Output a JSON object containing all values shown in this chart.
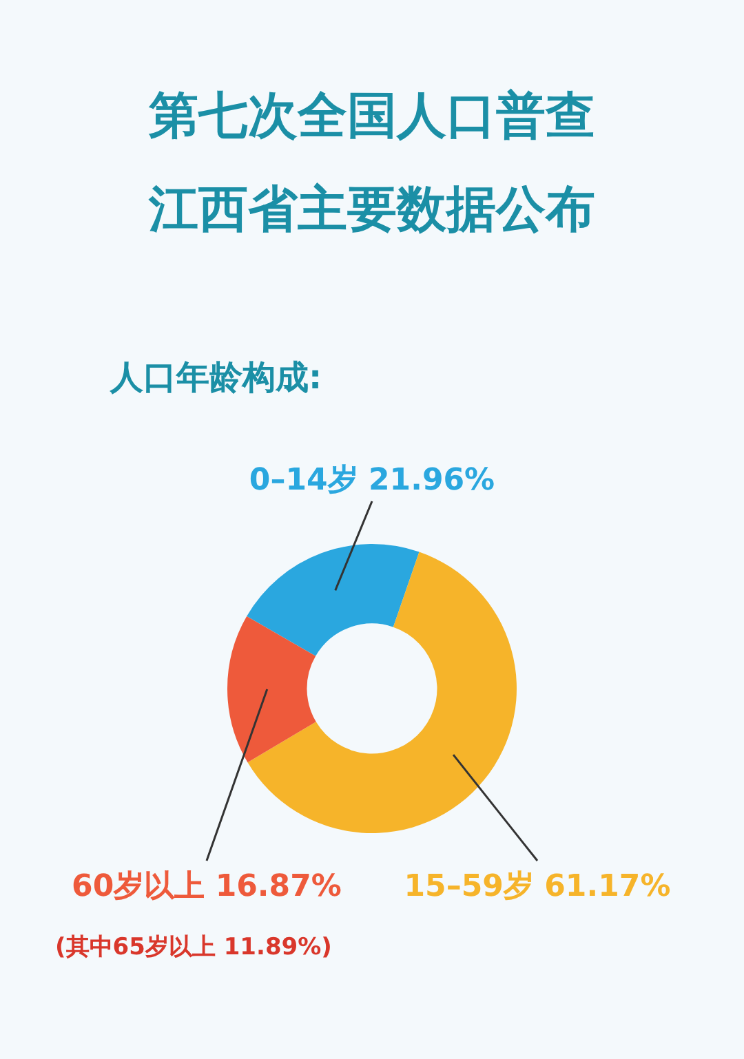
{
  "chart_data": {
    "type": "donut",
    "title": "第七次全国人口普查",
    "subtitle": "江西省主要数据公布",
    "annotations": [
      "人口年龄构成:",
      "(其中65岁以上 11.89%)"
    ],
    "categories": [
      "0–14岁",
      "15–59岁",
      "60岁以上"
    ],
    "values": [
      21.96,
      61.17,
      16.87
    ],
    "value_labels": [
      "21.96%",
      "61.17%",
      "16.87%"
    ],
    "colors": [
      "#2aa7df",
      "#f6b42a",
      "#ee5a3b"
    ],
    "legend": false
  }
}
